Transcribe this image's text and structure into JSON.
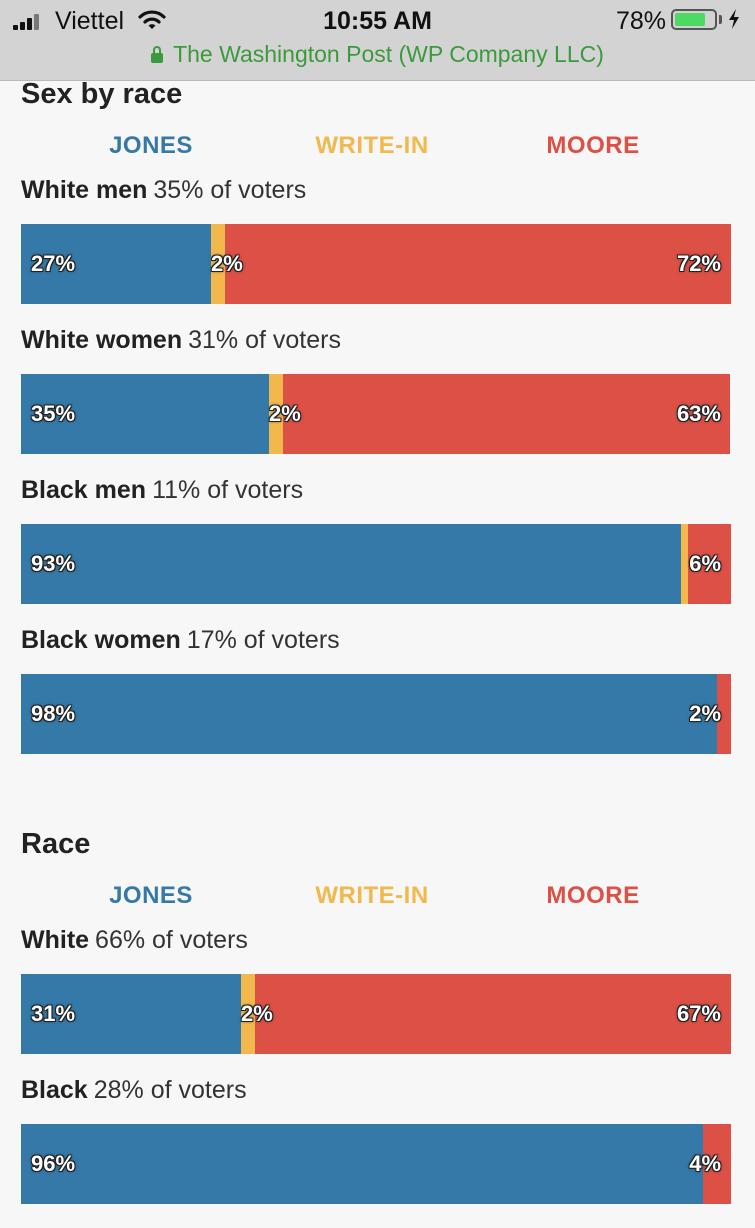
{
  "status_bar": {
    "carrier": "Viettel",
    "time": "10:55 AM",
    "battery_percent": "78%",
    "battery_level": 0.78,
    "url_text": "The Washington Post (WP Company LLC)"
  },
  "colors": {
    "jones": "#3479a8",
    "writein": "#f2b84b",
    "moore": "#dc5045"
  },
  "legend": {
    "jones": "JONES",
    "writein": "WRITE-IN",
    "moore": "MOORE"
  },
  "chart_data": [
    {
      "type": "bar",
      "stacked": true,
      "orientation": "horizontal",
      "title": "Sex by race",
      "series_order": [
        "jones",
        "writein",
        "moore"
      ],
      "groups": [
        {
          "name": "White men",
          "share_label": "35% of voters",
          "values": {
            "jones": 27,
            "writein": 2,
            "moore": 72
          },
          "labels": {
            "jones": "27%",
            "writein": "2%",
            "moore": "72%"
          }
        },
        {
          "name": "White women",
          "share_label": "31% of voters",
          "values": {
            "jones": 35,
            "writein": 2,
            "moore": 63
          },
          "labels": {
            "jones": "35%",
            "writein": "2%",
            "moore": "63%"
          }
        },
        {
          "name": "Black men",
          "share_label": "11% of voters",
          "values": {
            "jones": 93,
            "writein": 1,
            "moore": 6
          },
          "labels": {
            "jones": "93%",
            "moore": "6%"
          }
        },
        {
          "name": "Black women",
          "share_label": "17% of voters",
          "values": {
            "jones": 98,
            "writein": 0,
            "moore": 2
          },
          "labels": {
            "jones": "98%",
            "moore": "2%"
          }
        }
      ]
    },
    {
      "type": "bar",
      "stacked": true,
      "orientation": "horizontal",
      "title": "Race",
      "series_order": [
        "jones",
        "writein",
        "moore"
      ],
      "groups": [
        {
          "name": "White",
          "share_label": "66% of voters",
          "values": {
            "jones": 31,
            "writein": 2,
            "moore": 67
          },
          "labels": {
            "jones": "31%",
            "writein": "2%",
            "moore": "67%"
          }
        },
        {
          "name": "Black",
          "share_label": "28% of voters",
          "values": {
            "jones": 96,
            "writein": 0,
            "moore": 4
          },
          "labels": {
            "jones": "96%",
            "moore": "4%"
          }
        }
      ]
    }
  ]
}
